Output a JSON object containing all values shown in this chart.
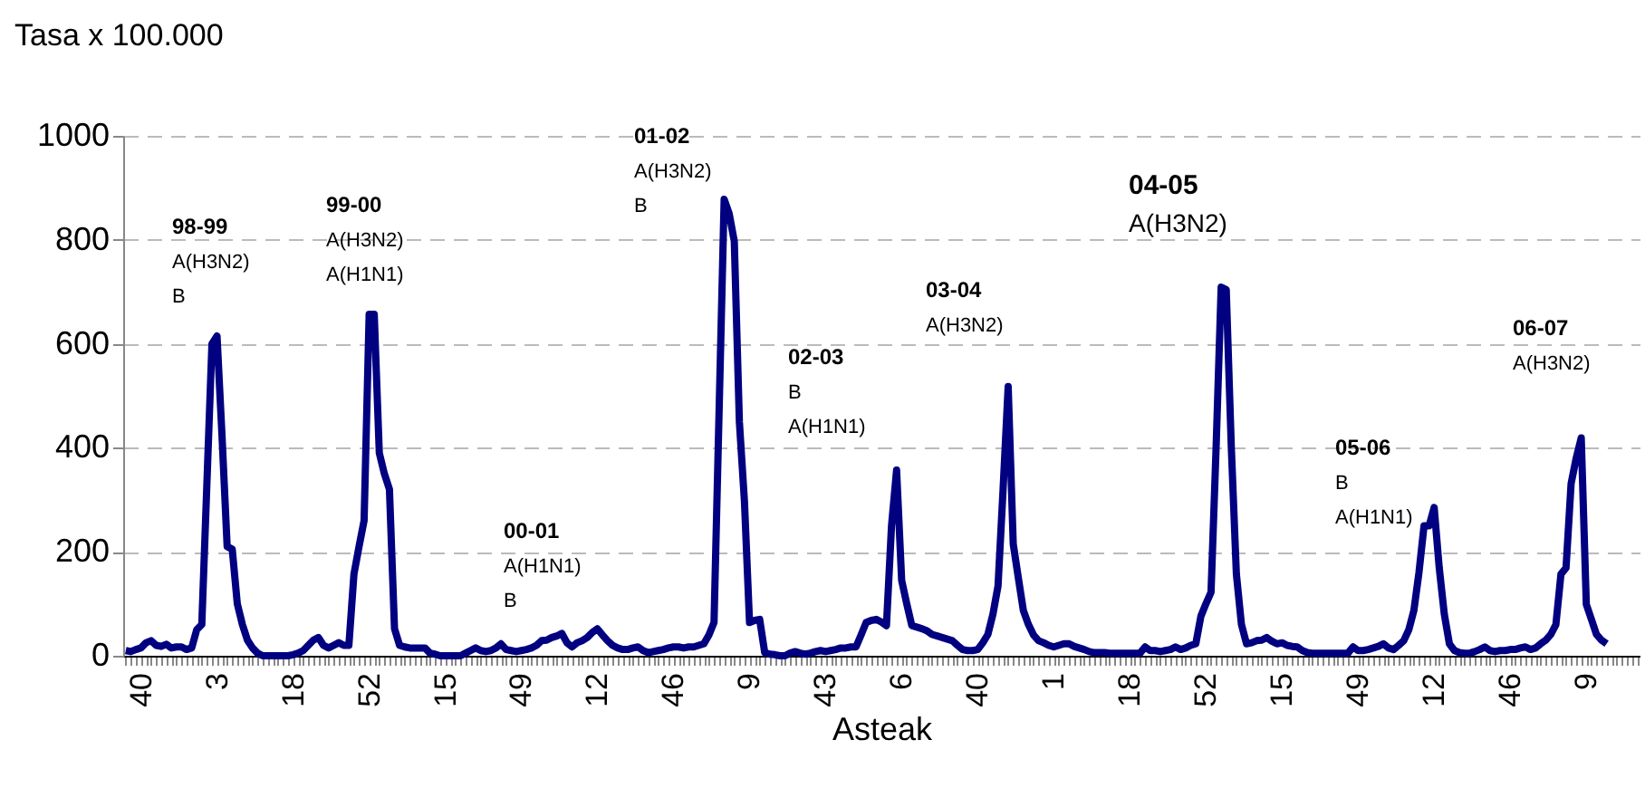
{
  "chart_data": {
    "type": "line",
    "ylabel": "Tasa x 100.000",
    "xlabel": "Asteak",
    "categories": [
      null,
      null,
      null,
      "40",
      null,
      null,
      null,
      null,
      null,
      null,
      null,
      null,
      null,
      null,
      null,
      null,
      null,
      null,
      "3",
      null,
      null,
      null,
      null,
      null,
      null,
      null,
      null,
      null,
      null,
      null,
      null,
      null,
      null,
      "18",
      null,
      null,
      null,
      null,
      null,
      null,
      null,
      null,
      null,
      null,
      null,
      null,
      null,
      null,
      "52",
      null,
      null,
      null,
      null,
      null,
      null,
      null,
      null,
      null,
      null,
      null,
      null,
      null,
      null,
      "15",
      null,
      null,
      null,
      null,
      null,
      null,
      null,
      null,
      null,
      null,
      null,
      null,
      null,
      null,
      "49",
      null,
      null,
      null,
      null,
      null,
      null,
      null,
      null,
      null,
      null,
      null,
      null,
      null,
      null,
      "12",
      null,
      null,
      null,
      null,
      null,
      null,
      null,
      null,
      null,
      null,
      null,
      null,
      null,
      null,
      "46",
      null,
      null,
      null,
      null,
      null,
      null,
      null,
      null,
      null,
      null,
      null,
      null,
      null,
      null,
      "9",
      null,
      null,
      null,
      null,
      null,
      null,
      null,
      null,
      null,
      null,
      null,
      null,
      null,
      null,
      "43",
      null,
      null,
      null,
      null,
      null,
      null,
      null,
      null,
      null,
      null,
      null,
      null,
      null,
      null,
      "6",
      null,
      null,
      null,
      null,
      null,
      null,
      null,
      null,
      null,
      null,
      null,
      null,
      null,
      null,
      "40",
      null,
      null,
      null,
      null,
      null,
      null,
      null,
      null,
      null,
      null,
      null,
      null,
      null,
      null,
      "1",
      null,
      null,
      null,
      null,
      null,
      null,
      null,
      null,
      null,
      null,
      null,
      null,
      null,
      null,
      "18",
      null,
      null,
      null,
      null,
      null,
      null,
      null,
      null,
      null,
      null,
      null,
      null,
      null,
      null,
      "52",
      null,
      null,
      null,
      null,
      null,
      null,
      null,
      null,
      null,
      null,
      null,
      null,
      null,
      null,
      "15",
      null,
      null,
      null,
      null,
      null,
      null,
      null,
      null,
      null,
      null,
      null,
      null,
      null,
      null,
      "49",
      null,
      null,
      null,
      null,
      null,
      null,
      null,
      null,
      null,
      null,
      null,
      null,
      null,
      null,
      "12",
      null,
      null,
      null,
      null,
      null,
      null,
      null,
      null,
      null,
      null,
      null,
      null,
      null,
      null,
      "46",
      null,
      null,
      null,
      null,
      null,
      null,
      null,
      null,
      null,
      null,
      null,
      null,
      null,
      null,
      "9",
      null,
      null,
      null,
      null,
      null,
      null,
      null,
      null,
      null,
      null
    ],
    "series": [
      {
        "color": "#000080",
        "values": [
          10,
          8,
          12,
          15,
          25,
          29,
          20,
          18,
          22,
          15,
          17,
          17,
          12,
          15,
          50,
          60,
          330,
          600,
          615,
          420,
          210,
          205,
          100,
          60,
          30,
          15,
          5,
          0,
          0,
          0,
          0,
          0,
          0,
          2,
          5,
          10,
          20,
          30,
          35,
          20,
          15,
          20,
          25,
          20,
          20,
          157,
          210,
          260,
          657,
          657,
          390,
          350,
          320,
          52,
          20,
          17,
          15,
          15,
          15,
          15,
          5,
          3,
          0,
          0,
          0,
          0,
          0,
          5,
          10,
          15,
          10,
          8,
          10,
          15,
          23,
          12,
          10,
          8,
          10,
          12,
          15,
          20,
          29,
          30,
          35,
          38,
          43,
          25,
          17,
          25,
          29,
          35,
          45,
          52,
          40,
          29,
          20,
          15,
          12,
          12,
          15,
          17,
          10,
          6,
          8,
          10,
          12,
          15,
          17,
          17,
          15,
          17,
          17,
          20,
          23,
          40,
          64,
          470,
          878,
          850,
          797,
          450,
          297,
          64,
          68,
          70,
          6,
          3,
          2,
          0,
          0,
          5,
          8,
          5,
          3,
          5,
          8,
          10,
          8,
          10,
          12,
          15,
          15,
          17,
          17,
          40,
          64,
          68,
          70,
          65,
          58,
          250,
          357,
          145,
          100,
          58,
          55,
          52,
          48,
          41,
          38,
          35,
          32,
          29,
          20,
          12,
          10,
          10,
          12,
          25,
          41,
          80,
          134,
          320,
          518,
          215,
          150,
          87,
          60,
          40,
          29,
          25,
          20,
          17,
          20,
          23,
          23,
          18,
          15,
          12,
          8,
          6,
          6,
          6,
          5,
          5,
          5,
          5,
          5,
          5,
          5,
          17,
          10,
          10,
          8,
          10,
          12,
          17,
          12,
          15,
          20,
          23,
          76,
          100,
          122,
          400,
          709,
          704,
          401,
          157,
          60,
          23,
          25,
          29,
          30,
          35,
          28,
          23,
          25,
          20,
          18,
          17,
          10,
          6,
          5,
          5,
          5,
          5,
          5,
          5,
          5,
          5,
          17,
          10,
          10,
          12,
          15,
          18,
          23,
          15,
          12,
          20,
          29,
          50,
          87,
          160,
          250,
          250,
          285,
          169,
          80,
          23,
          10,
          6,
          5,
          5,
          8,
          12,
          17,
          10,
          8,
          10,
          10,
          12,
          12,
          15,
          17,
          12,
          15,
          23,
          30,
          41,
          60,
          157,
          169,
          331,
          380,
          419,
          99,
          70,
          41,
          30,
          23,
          null,
          null,
          null,
          null,
          null,
          null
        ]
      }
    ],
    "ylim": [
      0,
      1000
    ],
    "yticks": [
      0,
      200,
      400,
      600,
      800,
      1000
    ],
    "grid": "y",
    "line_style": "solid",
    "annotations": [
      "98-99\nA(H3N2)\nB",
      "99-00\nA(H3N2)\nA(H1N1)",
      "00-01\nA(H1N1)\nB",
      "01-02\nA(H3N2)\nB",
      "02-03\nB\nA(H1N1)",
      "03-04\nA(H3N2)",
      "04-05\nA(H3N2)",
      "05-06\nB\nA(H1N1)",
      "06-07\nA(H3N2)"
    ]
  }
}
